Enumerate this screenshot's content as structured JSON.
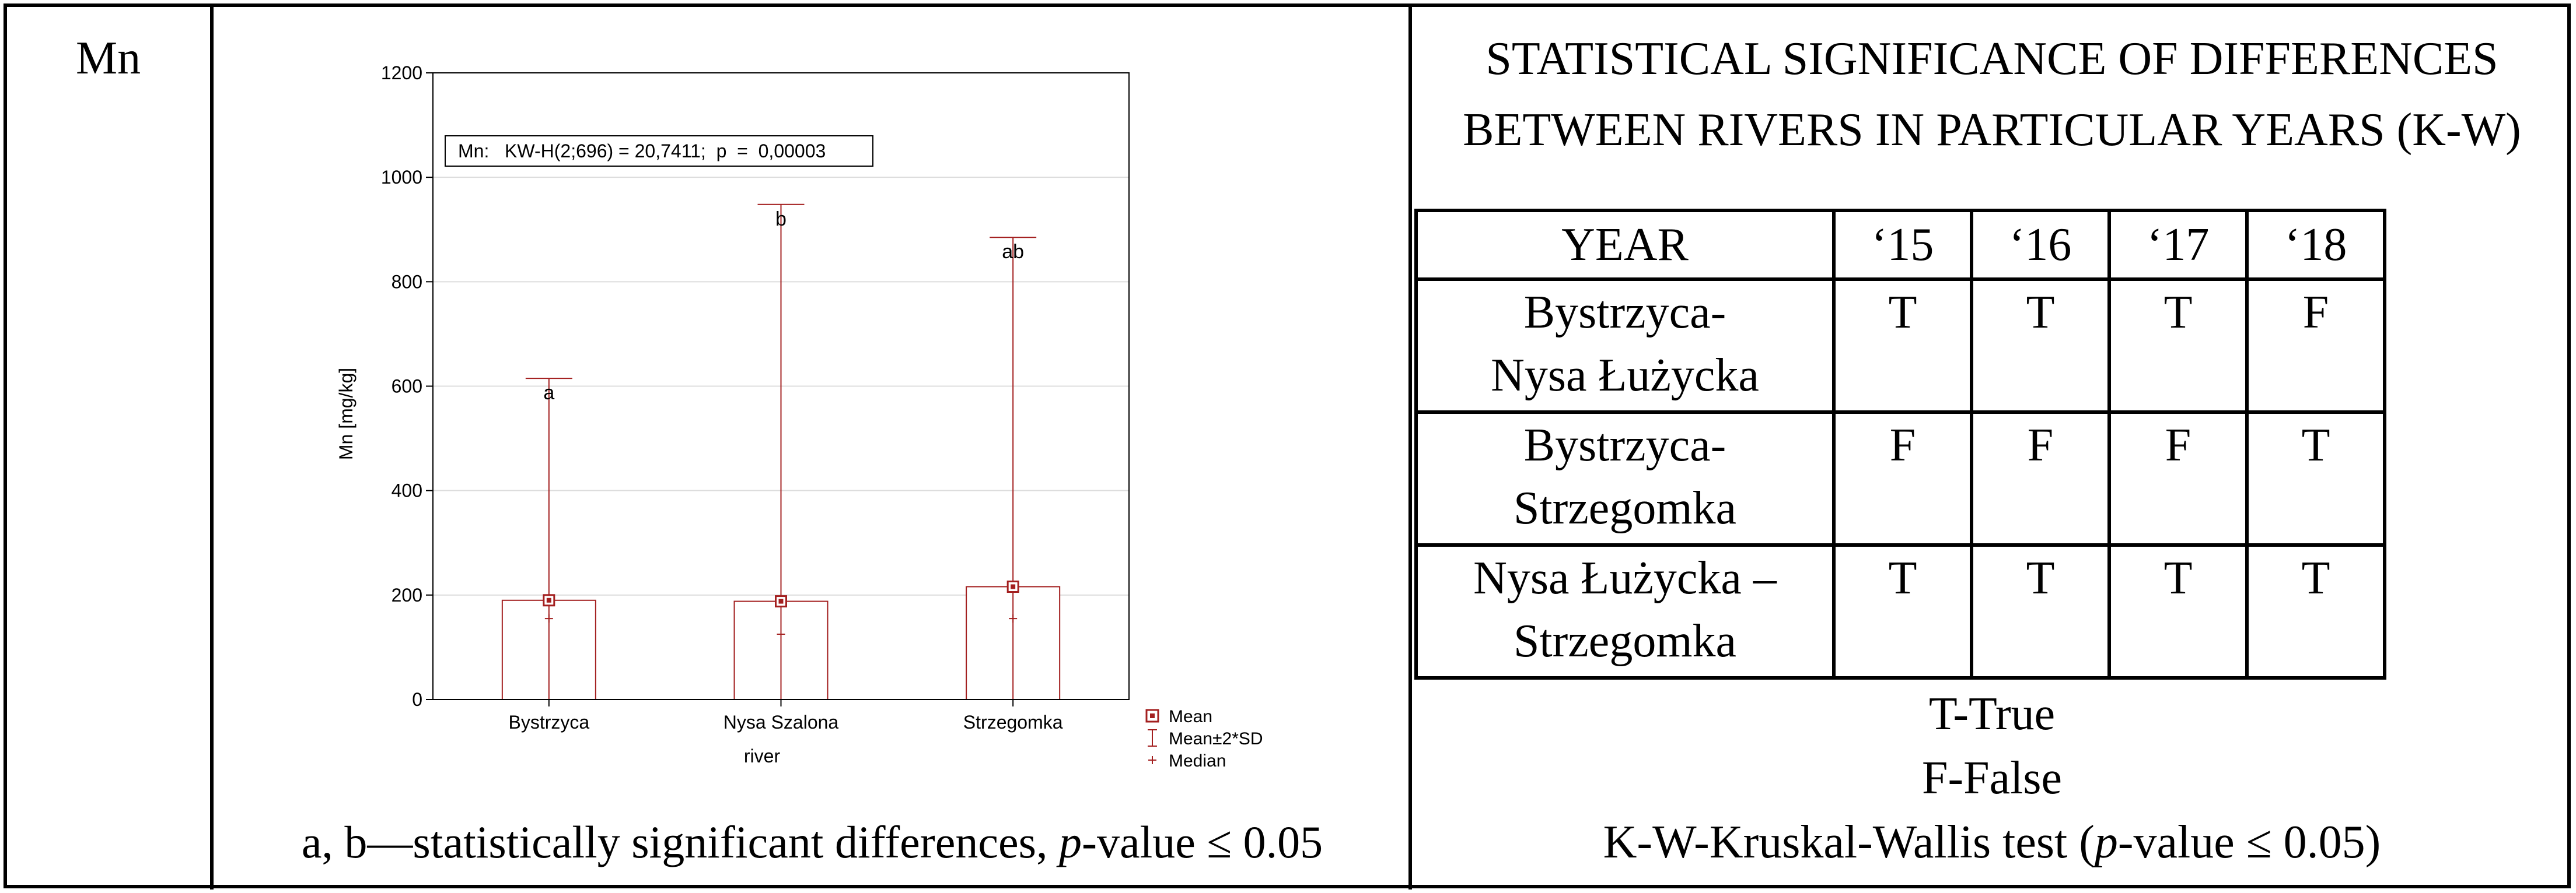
{
  "element": "Mn",
  "chart_data": {
    "type": "bar",
    "categories": [
      "Bystrzyca",
      "Nysa Szalona",
      "Strzegomka"
    ],
    "series": [
      {
        "name": "Mean",
        "values": [
          190,
          188,
          216
        ]
      },
      {
        "name": "Mean±2*SD",
        "upper": [
          615,
          948,
          885
        ],
        "lower": [
          0,
          0,
          0
        ]
      },
      {
        "name": "Median",
        "values": [
          155,
          125,
          155
        ]
      }
    ],
    "group_letters": [
      "a",
      "b",
      "ab"
    ],
    "annotation": "Mn:   KW-H(2;696) = 20,7411;  p  =  0,00003",
    "xlabel": "river",
    "ylabel": "Mn [mg/kg]",
    "ylim": [
      0,
      1200
    ],
    "yticks": [
      0,
      200,
      400,
      600,
      800,
      1000,
      1200
    ],
    "legend": [
      "Mean",
      "Mean±2*SD",
      "Median"
    ],
    "legend_position": "bottom-right",
    "grid": true,
    "colors": {
      "stroke": "#a31f1f",
      "fill": "#ffffff",
      "grid": "#dddddd"
    }
  },
  "chart_caption": {
    "prefix": "a, b—statistically significant differences, ",
    "p": "p",
    "suffix": "-value ≤ 0.05"
  },
  "significance_title": {
    "line1": "STATISTICAL SIGNIFICANCE OF DIFFERENCES",
    "line2": "BETWEEN RIVERS IN PARTICULAR YEARS (K-W)"
  },
  "table": {
    "header": [
      "YEAR",
      "‘15",
      "‘16",
      "‘17",
      "‘18"
    ],
    "rows": [
      {
        "pair1": "Bystrzyca-",
        "pair2": "Nysa Łużycka",
        "values": [
          "T",
          "T",
          "T",
          "F"
        ]
      },
      {
        "pair1": "Bystrzyca-",
        "pair2": "Strzegomka",
        "values": [
          "F",
          "F",
          "F",
          "T"
        ]
      },
      {
        "pair1": "Nysa Łużycka –",
        "pair2": "Strzegomka",
        "values": [
          "T",
          "T",
          "T",
          "T"
        ]
      }
    ]
  },
  "legend_text": {
    "t": "T-True",
    "f": "F-False",
    "kw_prefix": "K-W-Kruskal-Wallis test (",
    "kw_p": "p",
    "kw_suffix": "-value ≤ 0.05)"
  }
}
